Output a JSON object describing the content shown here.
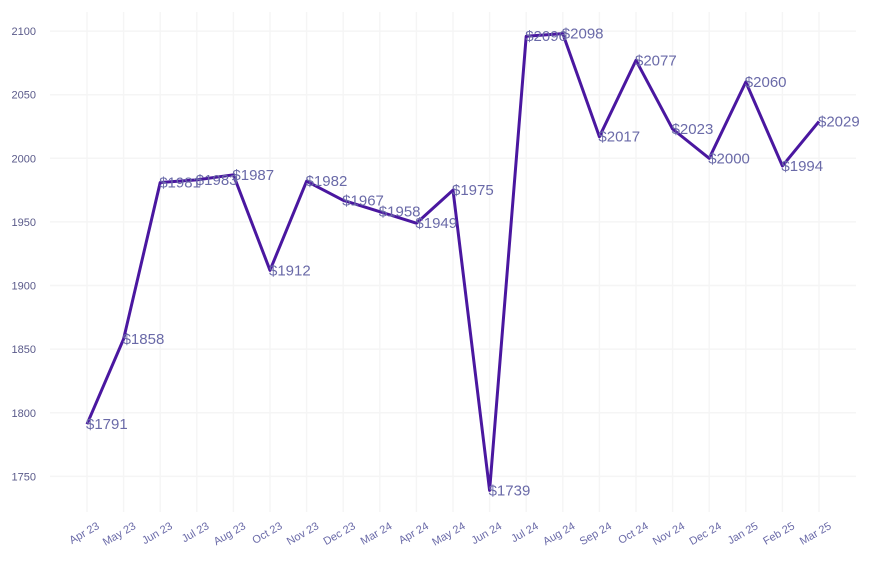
{
  "chart_data": {
    "type": "line",
    "categories": [
      "Apr 23",
      "May 23",
      "Jun 23",
      "Jul 23",
      "Aug 23",
      "Oct 23",
      "Nov 23",
      "Dec 23",
      "Mar 24",
      "Apr 24",
      "May 24",
      "Jun 24",
      "Jul 24",
      "Aug 24",
      "Sep 24",
      "Oct 24",
      "Nov 24",
      "Dec 24",
      "Jan 25",
      "Feb 25",
      "Mar 25"
    ],
    "values": [
      1791,
      1858,
      1981,
      1983,
      1987,
      1912,
      1982,
      1967,
      1958,
      1949,
      1975,
      1739,
      2096,
      2098,
      2017,
      2077,
      2023,
      2000,
      2060,
      1994,
      2029
    ],
    "data_labels": [
      "$1791",
      "$1858",
      "$1981",
      "$1983",
      "$1987",
      "$1912",
      "$1982",
      "$1967",
      "$1958",
      "$1949",
      "$1975",
      "$1739",
      "$2096",
      "$2098",
      "$2017",
      "$2077",
      "$2023",
      "$2000",
      "$2060",
      "$1994",
      "$2029"
    ],
    "y_ticks": [
      1750,
      1800,
      1850,
      1900,
      1950,
      2000,
      2050,
      2100
    ],
    "ylim": [
      1722,
      2115
    ],
    "title": "",
    "xlabel": "",
    "ylabel": "",
    "grid": true,
    "line_color": "#4a17a0",
    "label_color": "#6a6aa8",
    "grid_color": "#f5f5f5"
  }
}
